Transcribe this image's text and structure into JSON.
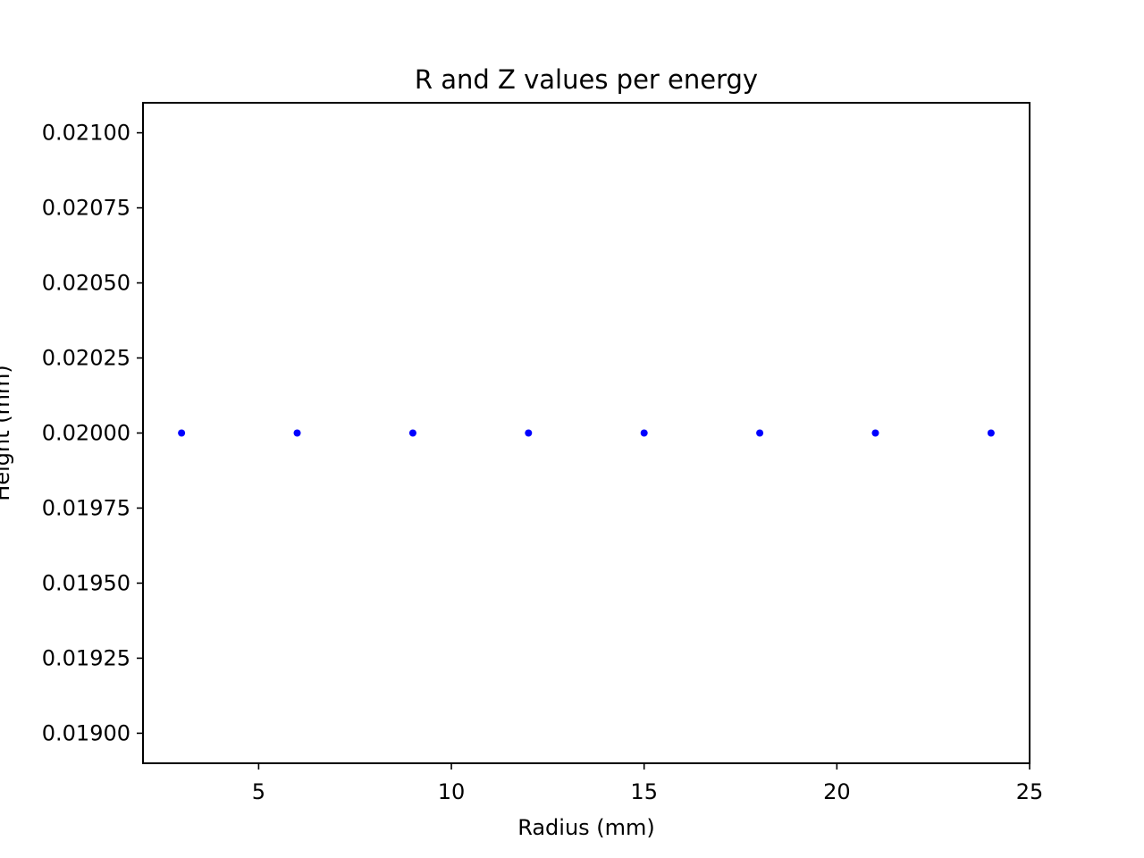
{
  "chart_data": {
    "type": "scatter",
    "title": "R and Z values per energy",
    "xlabel": "Radius (mm)",
    "ylabel": "Height (mm)",
    "xlim": [
      2,
      25
    ],
    "ylim": [
      0.0189,
      0.0211
    ],
    "xticks": [
      5,
      10,
      15,
      20,
      25
    ],
    "xtick_labels": [
      "5",
      "10",
      "15",
      "20",
      "25"
    ],
    "yticks": [
      0.019,
      0.01925,
      0.0195,
      0.01975,
      0.02,
      0.02025,
      0.0205,
      0.02075,
      0.021
    ],
    "ytick_labels": [
      "0.01900",
      "0.01925",
      "0.01950",
      "0.01975",
      "0.02000",
      "0.02025",
      "0.02050",
      "0.02075",
      "0.02100"
    ],
    "grid": false,
    "legend": false,
    "series": [
      {
        "color": "#0000ff",
        "marker": "dot",
        "x": [
          3,
          6,
          9,
          12,
          15,
          18,
          21,
          24
        ],
        "y": [
          0.02,
          0.02,
          0.02,
          0.02,
          0.02,
          0.02,
          0.02,
          0.02
        ]
      }
    ]
  }
}
